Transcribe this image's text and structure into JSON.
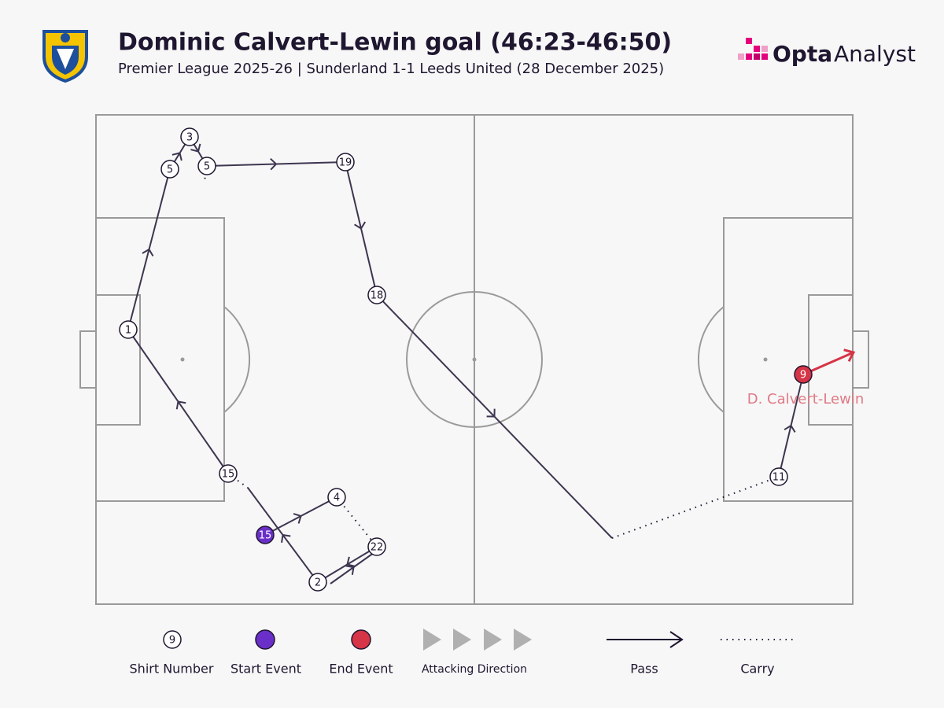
{
  "header": {
    "title": "Dominic Calvert-Lewin goal (46:23-46:50)",
    "subtitle": "Premier League 2025-26 | Sunderland 1-1 Leeds United (28 December 2025)"
  },
  "logo": {
    "brand": "Opta",
    "product": "Analyst"
  },
  "nodes": [
    {
      "label": "1"
    },
    {
      "label": "5"
    },
    {
      "label": "3"
    },
    {
      "label": "5"
    },
    {
      "label": "19"
    },
    {
      "label": "18"
    },
    {
      "label": "15"
    },
    {
      "label": "15"
    },
    {
      "label": "4"
    },
    {
      "label": "22"
    },
    {
      "label": "2"
    },
    {
      "label": "11"
    },
    {
      "label": "9"
    }
  ],
  "scorer": "D. Calvert-Lewin",
  "legend": {
    "shirt_example": "9",
    "shirt": "Shirt Number",
    "start": "Start Event",
    "end": "End Event",
    "direction": "Attacking Direction",
    "pass": "Pass",
    "carry": "Carry"
  }
}
